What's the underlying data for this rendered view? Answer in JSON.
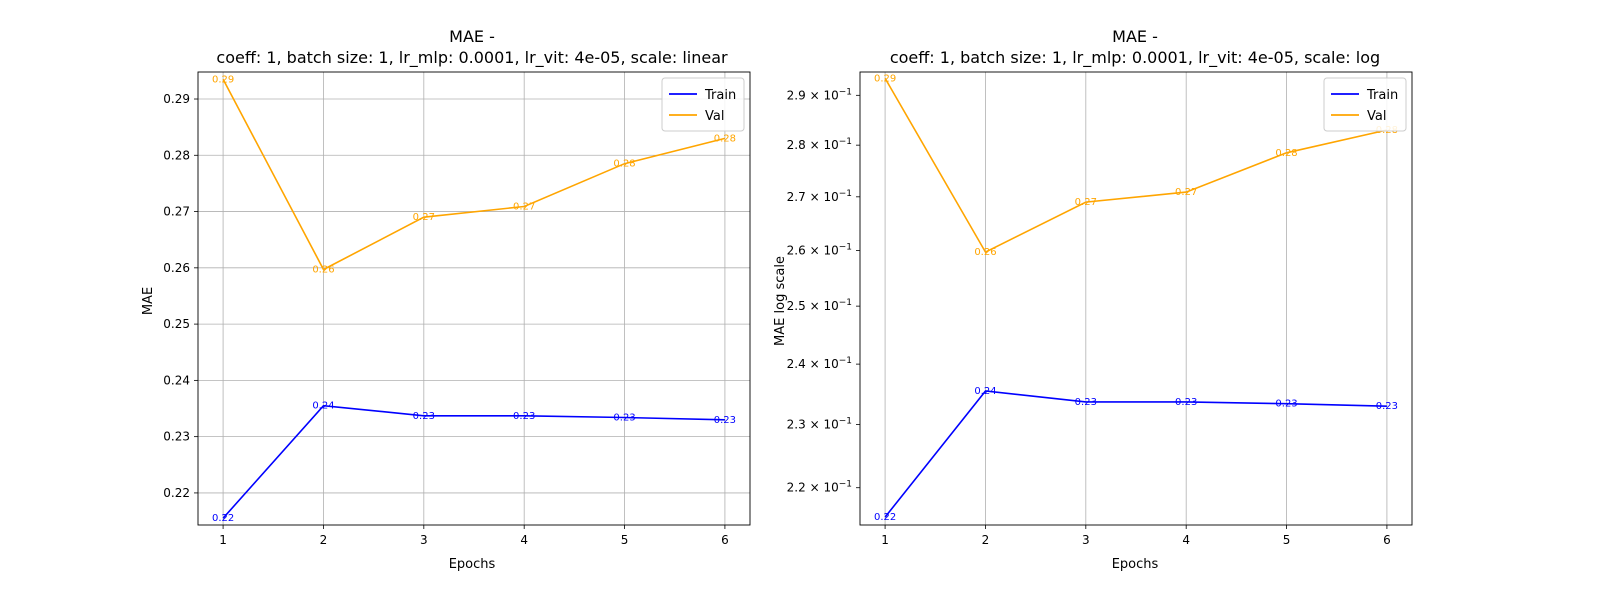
{
  "chart_data": [
    {
      "type": "line",
      "title": "MAE -",
      "subtitle": "coeff: 1, batch size: 1, lr_mlp: 0.0001, lr_vit: 4e-05, scale: linear",
      "xlabel": "Epochs",
      "ylabel": "MAE",
      "yscale": "linear",
      "x": [
        1,
        2,
        3,
        4,
        5,
        6
      ],
      "x_ticks": [
        "1",
        "2",
        "3",
        "4",
        "5",
        "6"
      ],
      "y_ticks": [
        "0.22",
        "0.23",
        "0.24",
        "0.25",
        "0.26",
        "0.27",
        "0.28",
        "0.29"
      ],
      "y_tick_values": [
        0.22,
        0.23,
        0.24,
        0.25,
        0.26,
        0.27,
        0.28,
        0.29
      ],
      "xlim": [
        0.75,
        6.25
      ],
      "ylim": [
        0.2143,
        0.2948
      ],
      "grid": true,
      "legend": "top-right",
      "series": [
        {
          "name": "Train",
          "color": "#0000ff",
          "values": [
            0.2155,
            0.2355,
            0.2337,
            0.2337,
            0.2334,
            0.233
          ],
          "labels": [
            "0.22",
            "0.24",
            "0.23",
            "0.23",
            "0.23",
            "0.23"
          ]
        },
        {
          "name": "Val",
          "color": "#ffa500",
          "values": [
            0.2935,
            0.2597,
            0.269,
            0.2709,
            0.2785,
            0.283
          ],
          "labels": [
            "0.29",
            "0.26",
            "0.27",
            "0.27",
            "0.28",
            "0.28"
          ]
        }
      ]
    },
    {
      "type": "line",
      "title": "MAE -",
      "subtitle": "coeff: 1, batch size: 1, lr_mlp: 0.0001, lr_vit: 4e-05, scale: log",
      "xlabel": "Epochs",
      "ylabel": "MAE log scale",
      "yscale": "log",
      "x": [
        1,
        2,
        3,
        4,
        5,
        6
      ],
      "x_ticks": [
        "1",
        "2",
        "3",
        "4",
        "5",
        "6"
      ],
      "y_ticks": [
        "2.2",
        "2.3",
        "2.4",
        "2.5",
        "2.6",
        "2.7",
        "2.8",
        "2.9"
      ],
      "y_tick_values": [
        0.22,
        0.23,
        0.24,
        0.25,
        0.26,
        0.27,
        0.28,
        0.29
      ],
      "y_tick_suffix": "× 10",
      "y_tick_exponent": "−1",
      "xlim": [
        0.75,
        6.25
      ],
      "ylim": [
        0.2143,
        0.2948
      ],
      "grid": "x-only",
      "legend": "top-right",
      "series": [
        {
          "name": "Train",
          "color": "#0000ff",
          "values": [
            0.2155,
            0.2355,
            0.2337,
            0.2337,
            0.2334,
            0.233
          ],
          "labels": [
            "0.22",
            "0.24",
            "0.23",
            "0.23",
            "0.23",
            "0.23"
          ]
        },
        {
          "name": "Val",
          "color": "#ffa500",
          "values": [
            0.2935,
            0.2597,
            0.269,
            0.2709,
            0.2785,
            0.283
          ],
          "labels": [
            "0.29",
            "0.26",
            "0.27",
            "0.27",
            "0.28",
            "0.28"
          ]
        }
      ]
    }
  ]
}
